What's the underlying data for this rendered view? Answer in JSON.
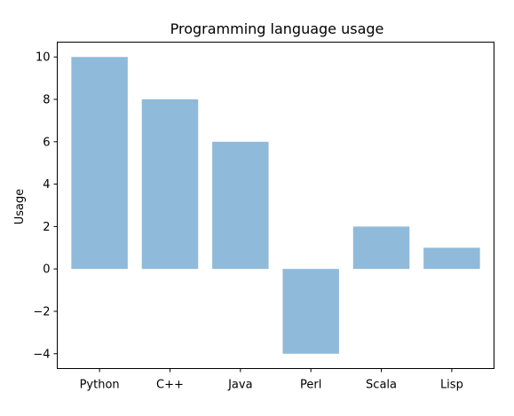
{
  "chart_data": {
    "type": "bar",
    "title": "Programming language usage",
    "xlabel": "",
    "ylabel": "Usage",
    "categories": [
      "Python",
      "C++",
      "Java",
      "Perl",
      "Scala",
      "Lisp"
    ],
    "values": [
      10,
      8,
      6,
      -4,
      2,
      1
    ],
    "ylim": [
      -4.7,
      10.7
    ],
    "yticks": [
      -4,
      -2,
      0,
      2,
      4,
      6,
      8,
      10
    ],
    "ytick_labels": [
      "−4",
      "−2",
      "0",
      "2",
      "4",
      "6",
      "8",
      "10"
    ],
    "bar_color": "#8fbada",
    "grid": false,
    "legend": "none"
  }
}
